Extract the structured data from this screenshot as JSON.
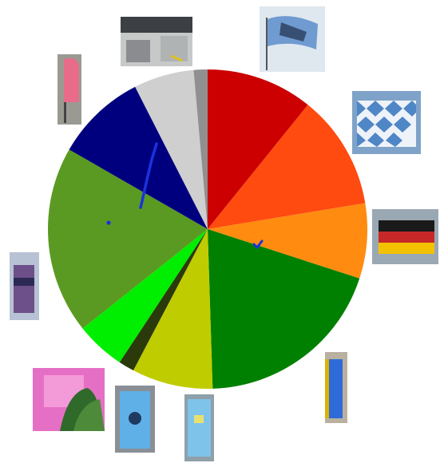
{
  "chart_data": {
    "type": "pie",
    "start_angle_deg": 0,
    "direction": "clockwise",
    "slices": [
      {
        "value": 10.8,
        "color": "#cc0000"
      },
      {
        "value": 11.6,
        "color": "#ff4a10"
      },
      {
        "value": 7.6,
        "color": "#ff8c10"
      },
      {
        "value": 19.5,
        "color": "#008000"
      },
      {
        "value": 8.2,
        "color": "#bfcc00"
      },
      {
        "value": 1.6,
        "color": "#2b3a0a"
      },
      {
        "value": 5.0,
        "color": "#00ee00"
      },
      {
        "value": 19.0,
        "color": "#5a9a22"
      },
      {
        "value": 9.2,
        "color": "#00007f"
      },
      {
        "value": 6.1,
        "color": "#cfcfcf"
      },
      {
        "value": 1.4,
        "color": "#909090"
      }
    ],
    "thumbnails": [
      {
        "subject": "bavarian-lion-flag-icon"
      },
      {
        "subject": "bavarian-lozenge-flag-icon"
      },
      {
        "subject": "german-flag-icon"
      },
      {
        "subject": "blue-banner-icon"
      },
      {
        "subject": "blue-sign-icon"
      },
      {
        "subject": "blue-banner-icon"
      },
      {
        "subject": "pink-banner-icon"
      },
      {
        "subject": "purple-banner-icon"
      },
      {
        "subject": "pink-flag-icon"
      },
      {
        "subject": "street-photo-icon"
      }
    ]
  }
}
